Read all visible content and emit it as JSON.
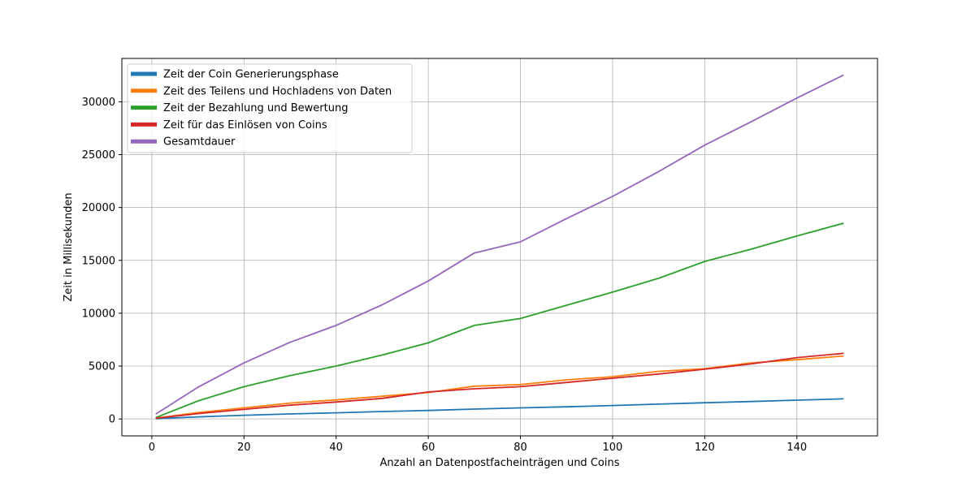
{
  "chart_data": {
    "type": "line",
    "title": "",
    "xlabel": "Anzahl an Datenpostfacheinträgen und Coins",
    "ylabel": "Zeit in Millisekunden",
    "xlim": [
      -6.5,
      157.5
    ],
    "ylim": [
      -1600,
      34100
    ],
    "xticks": [
      0,
      20,
      40,
      60,
      80,
      100,
      120,
      140
    ],
    "yticks": [
      0,
      5000,
      10000,
      15000,
      20000,
      25000,
      30000
    ],
    "grid": true,
    "legend_position": "top-left",
    "x": [
      1,
      10,
      20,
      30,
      40,
      50,
      60,
      70,
      80,
      90,
      100,
      110,
      120,
      130,
      140,
      150
    ],
    "series": [
      {
        "name": "Zeit der Coin Generierungsphase",
        "color": "#1f77b4",
        "values": [
          30,
          200,
          350,
          470,
          580,
          700,
          800,
          930,
          1050,
          1150,
          1270,
          1400,
          1530,
          1650,
          1780,
          1900
        ]
      },
      {
        "name": "Zeit des Teilens und Hochladens von Daten",
        "color": "#ff7f0e",
        "values": [
          80,
          600,
          1050,
          1500,
          1800,
          2150,
          2500,
          3100,
          3250,
          3700,
          4000,
          4500,
          4750,
          5300,
          5600,
          5950
        ]
      },
      {
        "name": "Zeit der Bezahlung und Bewertung",
        "color": "#2ca02c",
        "values": [
          150,
          1700,
          3050,
          4100,
          5000,
          6050,
          7200,
          8850,
          9500,
          10750,
          12000,
          13300,
          14900,
          16050,
          17300,
          18500
        ]
      },
      {
        "name": "Zeit für das Einlösen von Coins",
        "color": "#d62728",
        "values": [
          70,
          500,
          900,
          1300,
          1600,
          1950,
          2550,
          2850,
          3050,
          3450,
          3850,
          4250,
          4700,
          5200,
          5800,
          6200
        ]
      },
      {
        "name": "Gesamtdauer",
        "color": "#9467bd",
        "values": [
          500,
          3000,
          5300,
          7250,
          8850,
          10800,
          13050,
          15700,
          16750,
          18950,
          21050,
          23400,
          25900,
          28100,
          30350,
          32500
        ]
      }
    ]
  }
}
